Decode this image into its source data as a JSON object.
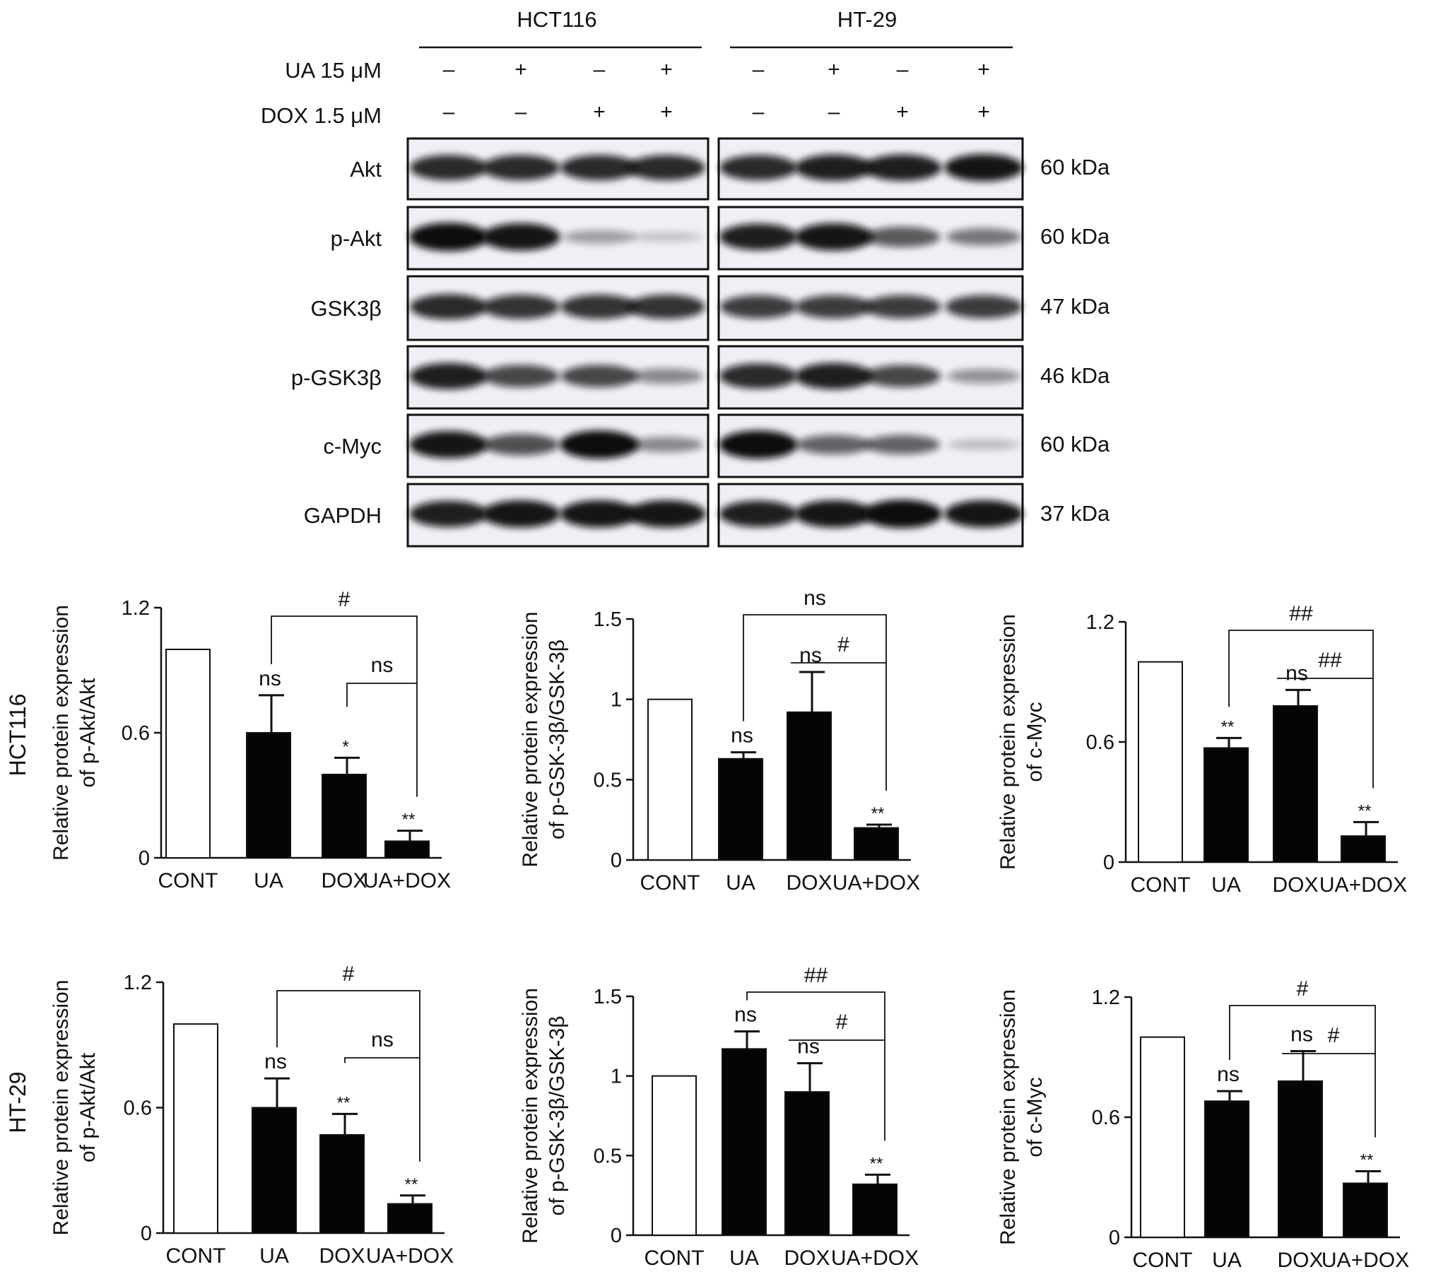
{
  "blot": {
    "cell_lines": [
      "HCT116",
      "HT-29"
    ],
    "treatment_rows": [
      {
        "label": "UA 15 μM",
        "signs": [
          "–",
          "+",
          "–",
          "+"
        ]
      },
      {
        "label": "DOX 1.5 μM",
        "signs": [
          "–",
          "–",
          "+",
          "+"
        ]
      }
    ],
    "proteins": [
      {
        "name": "Akt",
        "size": "60 kDa",
        "hct116": [
          0.85,
          0.85,
          0.85,
          0.85
        ],
        "ht29": [
          0.85,
          0.9,
          0.9,
          0.95
        ]
      },
      {
        "name": "p-Akt",
        "size": "60 kDa",
        "hct116": [
          1.0,
          0.95,
          0.25,
          0.06
        ],
        "ht29": [
          0.9,
          0.95,
          0.6,
          0.45
        ]
      },
      {
        "name": "GSK3β",
        "size": "47 kDa",
        "hct116": [
          0.85,
          0.8,
          0.8,
          0.8
        ],
        "ht29": [
          0.75,
          0.75,
          0.75,
          0.75
        ]
      },
      {
        "name": "p-GSK3β",
        "size": "46 kDa",
        "hct116": [
          0.9,
          0.7,
          0.7,
          0.35
        ],
        "ht29": [
          0.85,
          0.9,
          0.7,
          0.3
        ]
      },
      {
        "name": "c-Myc",
        "size": "60 kDa",
        "hct116": [
          0.95,
          0.65,
          1.0,
          0.35
        ],
        "ht29": [
          1.0,
          0.55,
          0.55,
          0.1
        ]
      },
      {
        "name": "GAPDH",
        "size": "37 kDa",
        "hct116": [
          0.9,
          0.95,
          0.95,
          0.95
        ],
        "ht29": [
          0.9,
          0.95,
          1.0,
          0.95
        ]
      }
    ]
  },
  "row_labels": [
    "HCT116",
    "HT-29"
  ],
  "chart_data": [
    {
      "type": "bar",
      "row": "HCT116",
      "categories": [
        "CONT",
        "UA",
        "DOX",
        "UA+DOX"
      ],
      "values": [
        1.0,
        0.6,
        0.4,
        0.08
      ],
      "errors": [
        0,
        0.18,
        0.08,
        0.05
      ],
      "ylabel_line1": "Relative protein expression",
      "ylabel_line2": "of p-Akt/Akt",
      "ylim": [
        0,
        1.2
      ],
      "yticks": [
        "0",
        "0.6",
        "1.2"
      ],
      "ytick_values": [
        0,
        0.6,
        1.2
      ],
      "marks": [
        "",
        "ns",
        "*",
        "**"
      ],
      "brackets": [
        {
          "from": 1,
          "to": 3,
          "label": "#",
          "style": "full"
        },
        {
          "from": 2,
          "to": 3,
          "label": "ns",
          "style": "full"
        }
      ]
    },
    {
      "type": "bar",
      "row": "HCT116",
      "categories": [
        "CONT",
        "UA",
        "DOX",
        "UA+DOX"
      ],
      "values": [
        1.0,
        0.63,
        0.92,
        0.2
      ],
      "errors": [
        0,
        0.04,
        0.25,
        0.02
      ],
      "ylabel_line1": "Relative protein expression",
      "ylabel_line2": "of p-GSK-3β/GSK-3β",
      "ylim": [
        0,
        1.5
      ],
      "yticks": [
        "0",
        "0.5",
        "1",
        "1.5"
      ],
      "ytick_values": [
        0,
        0.5,
        1,
        1.5
      ],
      "marks": [
        "",
        "ns",
        "ns",
        "**"
      ],
      "brackets": [
        {
          "from": 1,
          "to": 3,
          "label": "ns",
          "style": "full"
        },
        {
          "from": 2,
          "to": 3,
          "label": "#",
          "style": "half"
        }
      ]
    },
    {
      "type": "bar",
      "row": "HCT116",
      "categories": [
        "CONT",
        "UA",
        "DOX",
        "UA+DOX"
      ],
      "values": [
        1.0,
        0.57,
        0.78,
        0.13
      ],
      "errors": [
        0,
        0.05,
        0.08,
        0.07
      ],
      "ylabel_line1": "Relative protein expression",
      "ylabel_line2": "of c-Myc",
      "ylim": [
        0,
        1.2
      ],
      "yticks": [
        "0",
        "0.6",
        "1.2"
      ],
      "ytick_values": [
        0,
        0.6,
        1.2
      ],
      "marks": [
        "",
        "**",
        "ns",
        "**"
      ],
      "brackets": [
        {
          "from": 1,
          "to": 3,
          "label": "##",
          "style": "full"
        },
        {
          "from": 2,
          "to": 3,
          "label": "##",
          "style": "half"
        }
      ]
    },
    {
      "type": "bar",
      "row": "HT-29",
      "categories": [
        "CONT",
        "UA",
        "DOX",
        "UA+DOX"
      ],
      "values": [
        1.0,
        0.6,
        0.47,
        0.14
      ],
      "errors": [
        0,
        0.14,
        0.1,
        0.04
      ],
      "ylabel_line1": "Relative protein expression",
      "ylabel_line2": "of p-Akt/Akt",
      "ylim": [
        0,
        1.2
      ],
      "yticks": [
        "0",
        "0.6",
        "1.2"
      ],
      "ytick_values": [
        0,
        0.6,
        1.2
      ],
      "marks": [
        "",
        "ns",
        "**",
        "**"
      ],
      "brackets": [
        {
          "from": 1,
          "to": 3,
          "label": "#",
          "style": "full"
        },
        {
          "from": 2,
          "to": 3,
          "label": "ns",
          "style": "full"
        }
      ]
    },
    {
      "type": "bar",
      "row": "HT-29",
      "categories": [
        "CONT",
        "UA",
        "DOX",
        "UA+DOX"
      ],
      "values": [
        1.0,
        1.17,
        0.9,
        0.32
      ],
      "errors": [
        0,
        0.11,
        0.18,
        0.06
      ],
      "ylabel_line1": "Relative protein expression",
      "ylabel_line2": "of p-GSK-3β/GSK-3β",
      "ylim": [
        0,
        1.5
      ],
      "yticks": [
        "0",
        "0.5",
        "1",
        "1.5"
      ],
      "ytick_values": [
        0,
        0.5,
        1,
        1.5
      ],
      "marks": [
        "",
        "ns",
        "ns",
        "**"
      ],
      "brackets": [
        {
          "from": 1,
          "to": 3,
          "label": "##",
          "style": "full"
        },
        {
          "from": 2,
          "to": 3,
          "label": "#",
          "style": "half"
        }
      ]
    },
    {
      "type": "bar",
      "row": "HT-29",
      "categories": [
        "CONT",
        "UA",
        "DOX",
        "UA+DOX"
      ],
      "values": [
        1.0,
        0.68,
        0.78,
        0.27
      ],
      "errors": [
        0,
        0.05,
        0.15,
        0.06
      ],
      "ylabel_line1": "Relative protein expression",
      "ylabel_line2": "of c-Myc",
      "ylim": [
        0,
        1.2
      ],
      "yticks": [
        "0",
        "0.6",
        "1.2"
      ],
      "ytick_values": [
        0,
        0.6,
        1.2
      ],
      "marks": [
        "",
        "ns",
        "ns",
        "**"
      ],
      "brackets": [
        {
          "from": 1,
          "to": 3,
          "label": "#",
          "style": "full"
        },
        {
          "from": 2,
          "to": 3,
          "label": "#",
          "style": "half"
        }
      ]
    }
  ]
}
